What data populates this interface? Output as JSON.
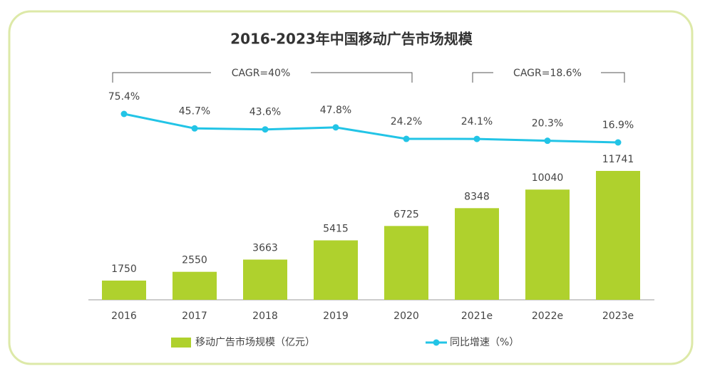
{
  "chart_data": {
    "type": "bar-line",
    "title": "2016-2023年中国移动广告市场规模",
    "categories": [
      "2016",
      "2017",
      "2018",
      "2019",
      "2020",
      "2021e",
      "2022e",
      "2023e"
    ],
    "series": [
      {
        "name": "移动广告市场规模（亿元）",
        "type": "bar",
        "color": "#afd12d",
        "values": [
          1750,
          2550,
          3663,
          5415,
          6725,
          8348,
          10040,
          11741
        ]
      },
      {
        "name": "同比增速（%）",
        "type": "line",
        "axis": "y2",
        "color": "#22c4e6",
        "values": [
          75.4,
          45.7,
          43.6,
          47.8,
          24.2,
          24.1,
          20.3,
          16.9
        ],
        "value_labels": [
          "75.4%",
          "45.7%",
          "43.6%",
          "47.8%",
          "24.2%",
          "24.1%",
          "20.3%",
          "16.9%"
        ]
      }
    ],
    "annotations": [
      "CAGR=40%",
      "CAGR=18.6%"
    ]
  }
}
